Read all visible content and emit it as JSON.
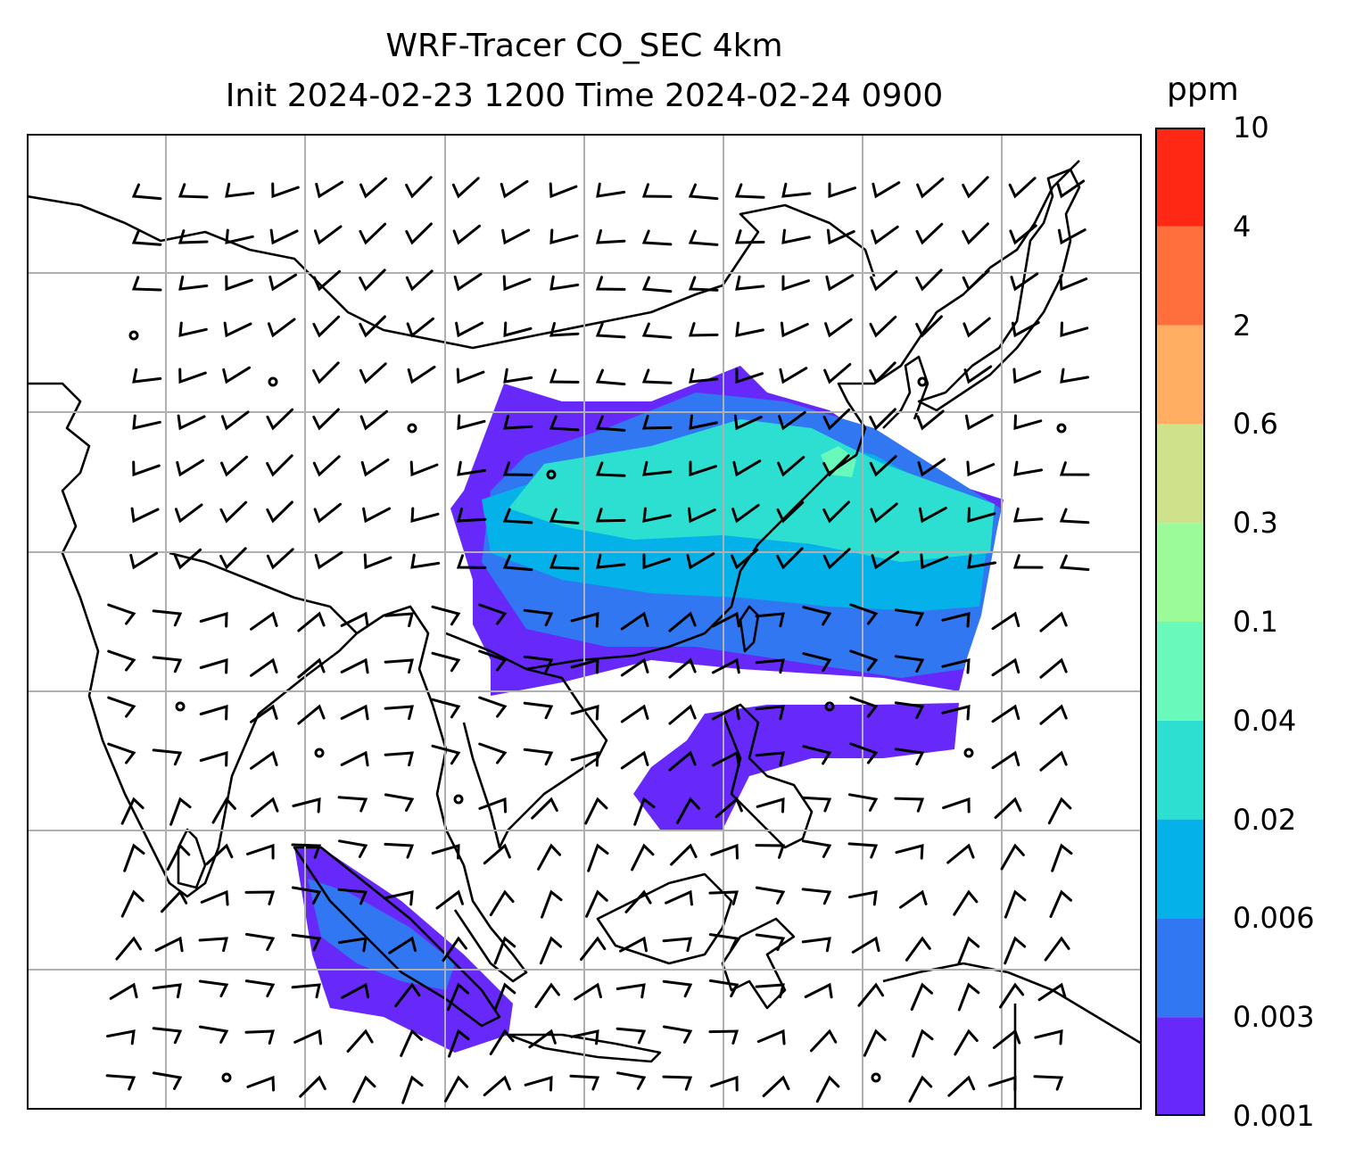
{
  "title": {
    "line1": "WRF-Tracer CO_SEC 4km",
    "line2": "Init 2024-02-23 1200 Time 2024-02-24 0900"
  },
  "colorbar": {
    "units": "ppm",
    "ticks": [
      "0.001",
      "0.003",
      "0.006",
      "0.02",
      "0.04",
      "0.1",
      "0.3",
      "0.6",
      "2",
      "4",
      "10"
    ],
    "colors": [
      "#6629fa",
      "#3177f2",
      "#05b1e9",
      "#2ddfd1",
      "#68f9bb",
      "#9bfb99",
      "#cfe28a",
      "#ffae62",
      "#ff6f3b",
      "#ff2815"
    ]
  },
  "map": {
    "gridlines": true,
    "coastline_color": "#000000",
    "grid_color": "#b0b0b0",
    "wind_barbs": true
  }
}
